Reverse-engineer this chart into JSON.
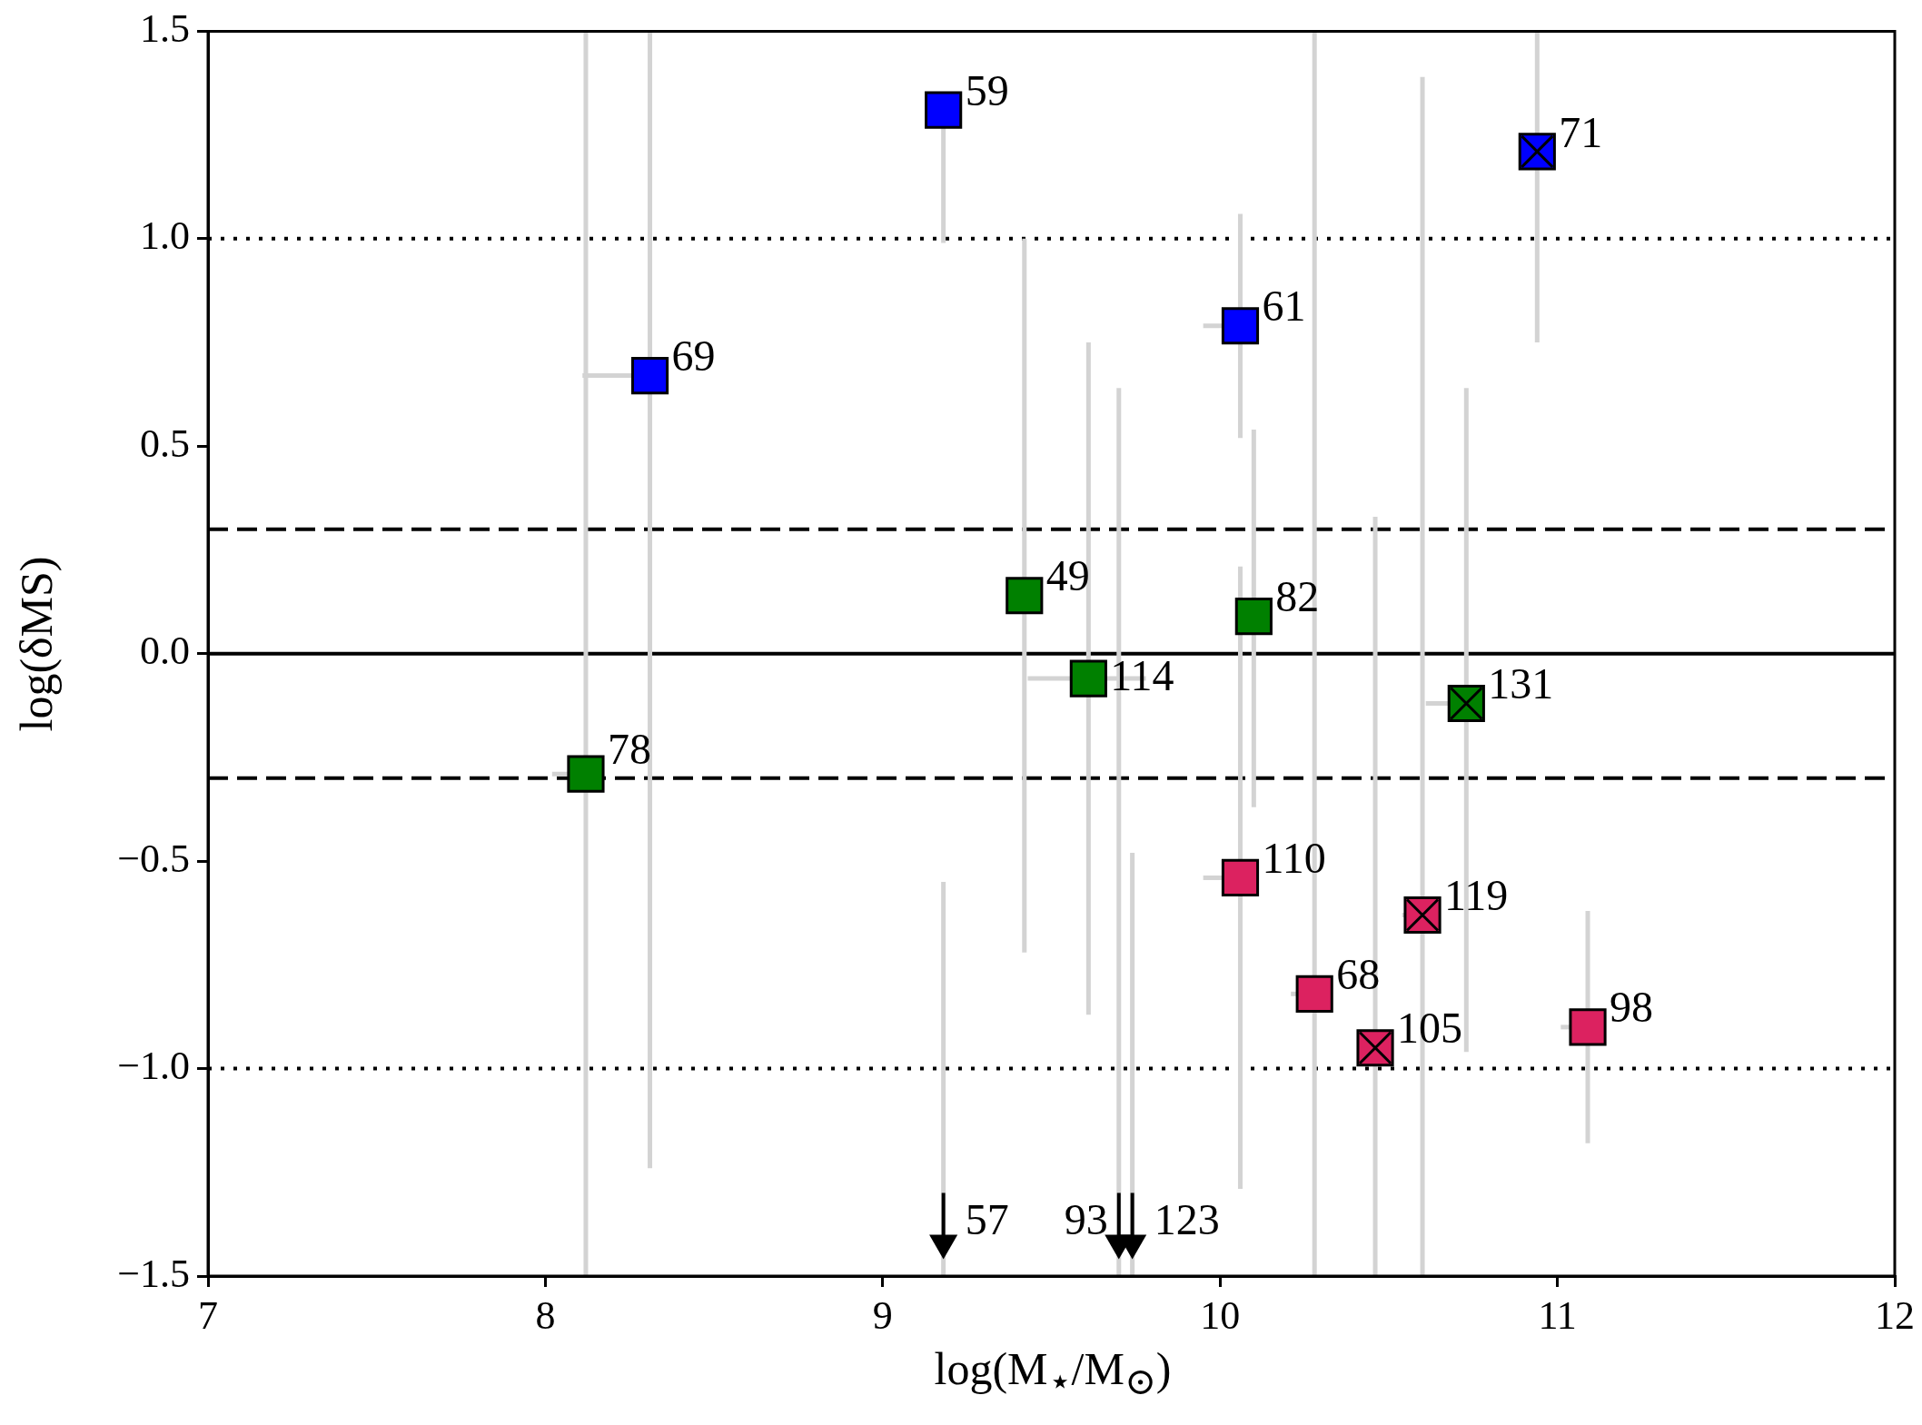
{
  "chart_data": {
    "type": "scatter",
    "xlabel": "log(M$_{⋆}$/M$_{⊙}$)",
    "ylabel": "log(δMS)",
    "xlim": [
      7,
      12
    ],
    "xticks": [
      7,
      8,
      9,
      10,
      11,
      12
    ],
    "ylim": [
      -1.5,
      1.5
    ],
    "yticks": [
      {
        "value": -1.5,
        "label": "−1.5"
      },
      {
        "value": -1,
        "label": "−1.0"
      },
      {
        "value": -0.5,
        "label": "−0.5"
      },
      {
        "value": 0,
        "label": "0.0"
      },
      {
        "value": 0.5,
        "label": "0.5"
      },
      {
        "value": 1,
        "label": "1.0"
      },
      {
        "value": 1.5,
        "label": "1.5"
      }
    ],
    "grid": false,
    "legend": false,
    "series": [
      {
        "color": "#0000ff",
        "marker": "square",
        "x": [
          9.18,
          8.31,
          10.06
        ],
        "values": [
          1.31,
          0.67,
          0.79
        ],
        "errors": [
          [
            0.99,
            1.35
          ],
          [
            -1.24,
            1.5
          ],
          [
            0.52,
            1.06
          ]
        ],
        "xerrors": [
          null,
          [
            8.11,
            8.31
          ],
          [
            9.95,
            10.06
          ]
        ]
      },
      {
        "color": "#0000ff",
        "marker": "square",
        "x": [
          10.94
        ],
        "values": [
          1.21
        ],
        "errors": [
          [
            0.75,
            1.5
          ]
        ],
        "xerrors": [
          null
        ]
      },
      {
        "color": "#008000",
        "marker": "square",
        "x": [
          9.42,
          9.61,
          10.1,
          8.12
        ],
        "values": [
          0.14,
          -0.06,
          0.09,
          -0.29
        ],
        "errors": [
          [
            -0.72,
            1.0
          ],
          [
            -0.87,
            0.75
          ],
          [
            -0.37,
            0.54
          ],
          [
            -1.5,
            1.5
          ]
        ],
        "xerrors": [
          null,
          [
            9.43,
            9.78
          ],
          null,
          [
            8.02,
            8.12
          ]
        ]
      },
      {
        "color": "#008000",
        "marker": "square",
        "x": [
          10.73
        ],
        "values": [
          -0.12
        ],
        "errors": [
          [
            -0.96,
            0.64
          ]
        ],
        "xerrors": [
          [
            10.61,
            10.73
          ]
        ]
      },
      {
        "color": "#dc2260",
        "marker": "square",
        "x": [
          10.06,
          10.28,
          11.09
        ],
        "values": [
          -0.54,
          -0.82,
          -0.9
        ],
        "errors": [
          [
            -1.29,
            0.21
          ],
          [
            -1.5,
            1.5
          ],
          [
            -1.18,
            -0.62
          ]
        ],
        "xerrors": [
          [
            9.95,
            10.06
          ],
          [
            10.21,
            10.28
          ],
          [
            11.01,
            11.09
          ]
        ]
      },
      {
        "color": "#dc2260",
        "marker": "square",
        "x": [
          10.6,
          10.46
        ],
        "values": [
          -0.63,
          -0.95
        ],
        "errors": [
          [
            -1.5,
            1.39
          ],
          [
            -1.5,
            0.33
          ]
        ],
        "xerrors": [
          [
            10.54,
            10.6
          ],
          null
        ]
      },
      {
        "color": "#000000",
        "marker": "cross",
        "x": [
          10.94,
          10.73,
          10.6,
          10.46
        ],
        "values": [
          1.21,
          -0.12,
          -0.63,
          -0.95
        ]
      },
      {
        "color": "#000000",
        "marker": "triangle",
        "x": [
          9.18,
          9.7,
          9.74
        ],
        "values": [
          -1.42,
          -1.42,
          -1.42
        ],
        "errors": [
          [
            -1.5,
            -0.55
          ],
          [
            -1.5,
            0.64
          ],
          [
            -1.5,
            -0.48
          ]
        ]
      }
    ],
    "ref_lines": [
      {
        "axis": "y",
        "value": 0,
        "color": "#000000",
        "line_style": "solid"
      },
      {
        "axis": "y",
        "value": 0.3,
        "color": "#000000",
        "line_style": "dashed"
      },
      {
        "axis": "y",
        "value": -0.3,
        "color": "#000000",
        "line_style": "dashed"
      },
      {
        "axis": "y",
        "value": 1,
        "color": "#000000",
        "line_style": "dotted"
      },
      {
        "axis": "y",
        "value": -1,
        "color": "#000000",
        "line_style": "dotted"
      }
    ],
    "annotations": [
      {
        "text": "59",
        "x": 9.18,
        "y": 1.31
      },
      {
        "text": "69",
        "x": 8.31,
        "y": 0.67
      },
      {
        "text": "61",
        "x": 10.06,
        "y": 0.79
      },
      {
        "text": "71",
        "x": 10.94,
        "y": 1.21
      },
      {
        "text": "49",
        "x": 9.42,
        "y": 0.14
      },
      {
        "text": "114",
        "x": 9.61,
        "y": -0.06
      },
      {
        "text": "82",
        "x": 10.1,
        "y": 0.09
      },
      {
        "text": "78",
        "x": 8.12,
        "y": -0.29
      },
      {
        "text": "131",
        "x": 10.73,
        "y": -0.12
      },
      {
        "text": "110",
        "x": 10.06,
        "y": -0.54
      },
      {
        "text": "68",
        "x": 10.28,
        "y": -0.82
      },
      {
        "text": "98",
        "x": 11.09,
        "y": -0.9
      },
      {
        "text": "119",
        "x": 10.6,
        "y": -0.63
      },
      {
        "text": "105",
        "x": 10.46,
        "y": -0.95
      },
      {
        "text": "57",
        "x": 9.18,
        "y": -1.42
      },
      {
        "text": "93",
        "x": 9.7,
        "y": -1.42
      },
      {
        "text": "123",
        "x": 9.74,
        "y": -1.42
      }
    ]
  }
}
